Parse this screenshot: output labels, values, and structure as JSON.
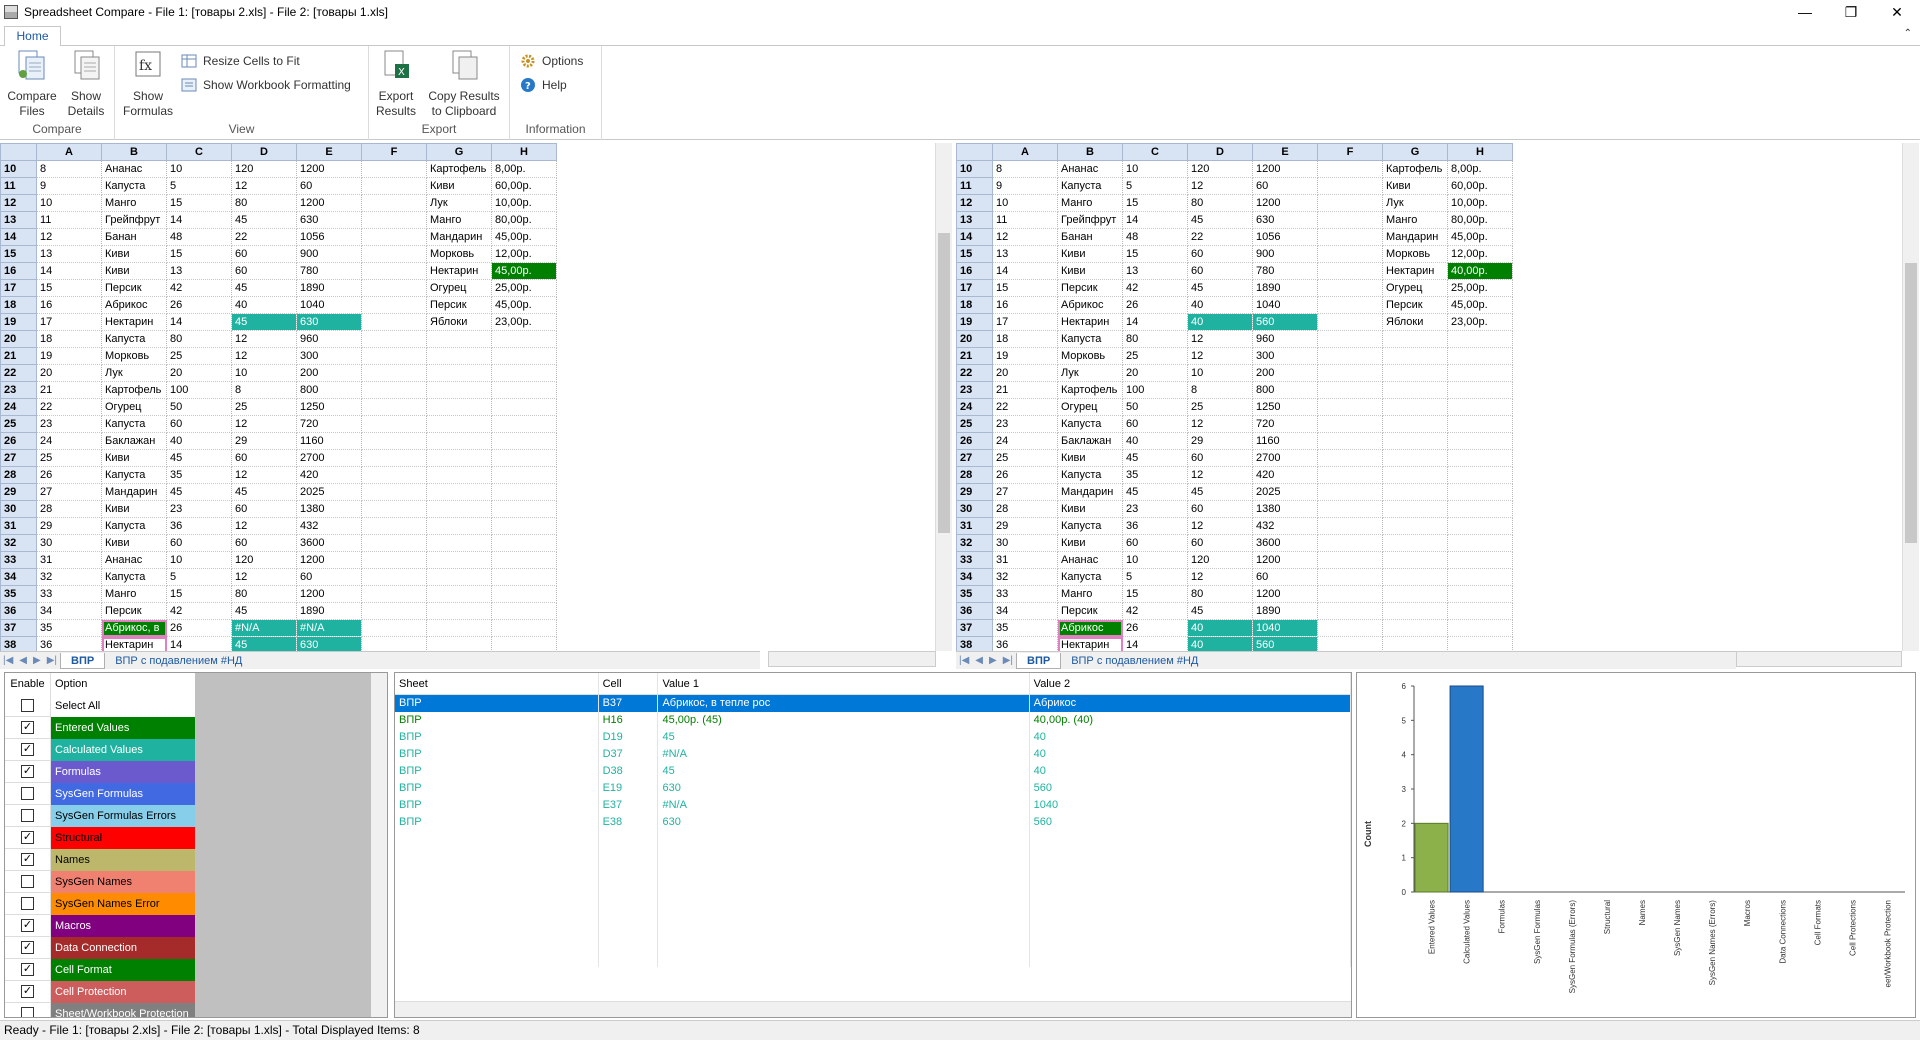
{
  "window": {
    "title": "Spreadsheet Compare - File 1: [товары 2.xls] - File 2: [товары 1.xls]"
  },
  "ribbon": {
    "tab": "Home",
    "groups": {
      "compare": "Compare",
      "view": "View",
      "export": "Export",
      "information": "Information"
    },
    "compare_files": [
      "Compare",
      "Files"
    ],
    "show_details": [
      "Show",
      "Details"
    ],
    "show_formulas": [
      "Show",
      "Formulas"
    ],
    "resize_cells": "Resize Cells to Fit",
    "show_formatting": "Show Workbook Formatting",
    "export_results": [
      "Export",
      "Results"
    ],
    "copy_results": [
      "Copy Results",
      "to Clipboard"
    ],
    "options": "Options",
    "help": "Help"
  },
  "columns": [
    "A",
    "B",
    "C",
    "D",
    "E",
    "F",
    "G",
    "H"
  ],
  "left_rows": [
    [
      "10",
      "8",
      "Ананас",
      "10",
      "120",
      "1200",
      "",
      "Картофель",
      "8,00р."
    ],
    [
      "11",
      "9",
      "Капуста",
      "5",
      "12",
      "60",
      "",
      "Киви",
      "60,00р."
    ],
    [
      "12",
      "10",
      "Манго",
      "15",
      "80",
      "1200",
      "",
      "Лук",
      "10,00р."
    ],
    [
      "13",
      "11",
      "Грейпфрут",
      "14",
      "45",
      "630",
      "",
      "Манго",
      "80,00р."
    ],
    [
      "14",
      "12",
      "Банан",
      "48",
      "22",
      "1056",
      "",
      "Мандарин",
      "45,00р."
    ],
    [
      "15",
      "13",
      "Киви",
      "15",
      "60",
      "900",
      "",
      "Морковь",
      "12,00р."
    ],
    [
      "16",
      "14",
      "Киви",
      "13",
      "60",
      "780",
      "",
      "Нектарин",
      "45,00р."
    ],
    [
      "17",
      "15",
      "Персик",
      "42",
      "45",
      "1890",
      "",
      "Огурец",
      "25,00р."
    ],
    [
      "18",
      "16",
      "Абрикос",
      "26",
      "40",
      "1040",
      "",
      "Персик",
      "45,00р."
    ],
    [
      "19",
      "17",
      "Нектарин",
      "14",
      "45",
      "630",
      "",
      "Яблоки",
      "23,00р."
    ],
    [
      "20",
      "18",
      "Капуста",
      "80",
      "12",
      "960",
      "",
      "",
      ""
    ],
    [
      "21",
      "19",
      "Морковь",
      "25",
      "12",
      "300",
      "",
      "",
      ""
    ],
    [
      "22",
      "20",
      "Лук",
      "20",
      "10",
      "200",
      "",
      "",
      ""
    ],
    [
      "23",
      "21",
      "Картофель",
      "100",
      "8",
      "800",
      "",
      "",
      ""
    ],
    [
      "24",
      "22",
      "Огурец",
      "50",
      "25",
      "1250",
      "",
      "",
      ""
    ],
    [
      "25",
      "23",
      "Капуста",
      "60",
      "12",
      "720",
      "",
      "",
      ""
    ],
    [
      "26",
      "24",
      "Баклажан",
      "40",
      "29",
      "1160",
      "",
      "",
      ""
    ],
    [
      "27",
      "25",
      "Киви",
      "45",
      "60",
      "2700",
      "",
      "",
      ""
    ],
    [
      "28",
      "26",
      "Капуста",
      "35",
      "12",
      "420",
      "",
      "",
      ""
    ],
    [
      "29",
      "27",
      "Мандарин",
      "45",
      "45",
      "2025",
      "",
      "",
      ""
    ],
    [
      "30",
      "28",
      "Киви",
      "23",
      "60",
      "1380",
      "",
      "",
      ""
    ],
    [
      "31",
      "29",
      "Капуста",
      "36",
      "12",
      "432",
      "",
      "",
      ""
    ],
    [
      "32",
      "30",
      "Киви",
      "60",
      "60",
      "3600",
      "",
      "",
      ""
    ],
    [
      "33",
      "31",
      "Ананас",
      "10",
      "120",
      "1200",
      "",
      "",
      ""
    ],
    [
      "34",
      "32",
      "Капуста",
      "5",
      "12",
      "60",
      "",
      "",
      ""
    ],
    [
      "35",
      "33",
      "Манго",
      "15",
      "80",
      "1200",
      "",
      "",
      ""
    ],
    [
      "36",
      "34",
      "Персик",
      "42",
      "45",
      "1890",
      "",
      "",
      ""
    ],
    [
      "37",
      "35",
      "Абрикос, в",
      "26",
      "#N/A",
      "#N/A",
      "",
      "",
      ""
    ],
    [
      "38",
      "36",
      "Нектарин",
      "14",
      "45",
      "630",
      "",
      "",
      ""
    ]
  ],
  "right_rows": [
    [
      "10",
      "8",
      "Ананас",
      "10",
      "120",
      "1200",
      "",
      "Картофель",
      "8,00р."
    ],
    [
      "11",
      "9",
      "Капуста",
      "5",
      "12",
      "60",
      "",
      "Киви",
      "60,00р."
    ],
    [
      "12",
      "10",
      "Манго",
      "15",
      "80",
      "1200",
      "",
      "Лук",
      "10,00р."
    ],
    [
      "13",
      "11",
      "Грейпфрут",
      "14",
      "45",
      "630",
      "",
      "Манго",
      "80,00р."
    ],
    [
      "14",
      "12",
      "Банан",
      "48",
      "22",
      "1056",
      "",
      "Мандарин",
      "45,00р."
    ],
    [
      "15",
      "13",
      "Киви",
      "15",
      "60",
      "900",
      "",
      "Морковь",
      "12,00р."
    ],
    [
      "16",
      "14",
      "Киви",
      "13",
      "60",
      "780",
      "",
      "Нектарин",
      "40,00р."
    ],
    [
      "17",
      "15",
      "Персик",
      "42",
      "45",
      "1890",
      "",
      "Огурец",
      "25,00р."
    ],
    [
      "18",
      "16",
      "Абрикос",
      "26",
      "40",
      "1040",
      "",
      "Персик",
      "45,00р."
    ],
    [
      "19",
      "17",
      "Нектарин",
      "14",
      "40",
      "560",
      "",
      "Яблоки",
      "23,00р."
    ],
    [
      "20",
      "18",
      "Капуста",
      "80",
      "12",
      "960",
      "",
      "",
      ""
    ],
    [
      "21",
      "19",
      "Морковь",
      "25",
      "12",
      "300",
      "",
      "",
      ""
    ],
    [
      "22",
      "20",
      "Лук",
      "20",
      "10",
      "200",
      "",
      "",
      ""
    ],
    [
      "23",
      "21",
      "Картофель",
      "100",
      "8",
      "800",
      "",
      "",
      ""
    ],
    [
      "24",
      "22",
      "Огурец",
      "50",
      "25",
      "1250",
      "",
      "",
      ""
    ],
    [
      "25",
      "23",
      "Капуста",
      "60",
      "12",
      "720",
      "",
      "",
      ""
    ],
    [
      "26",
      "24",
      "Баклажан",
      "40",
      "29",
      "1160",
      "",
      "",
      ""
    ],
    [
      "27",
      "25",
      "Киви",
      "45",
      "60",
      "2700",
      "",
      "",
      ""
    ],
    [
      "28",
      "26",
      "Капуста",
      "35",
      "12",
      "420",
      "",
      "",
      ""
    ],
    [
      "29",
      "27",
      "Мандарин",
      "45",
      "45",
      "2025",
      "",
      "",
      ""
    ],
    [
      "30",
      "28",
      "Киви",
      "23",
      "60",
      "1380",
      "",
      "",
      ""
    ],
    [
      "31",
      "29",
      "Капуста",
      "36",
      "12",
      "432",
      "",
      "",
      ""
    ],
    [
      "32",
      "30",
      "Киви",
      "60",
      "60",
      "3600",
      "",
      "",
      ""
    ],
    [
      "33",
      "31",
      "Ананас",
      "10",
      "120",
      "1200",
      "",
      "",
      ""
    ],
    [
      "34",
      "32",
      "Капуста",
      "5",
      "12",
      "60",
      "",
      "",
      ""
    ],
    [
      "35",
      "33",
      "Манго",
      "15",
      "80",
      "1200",
      "",
      "",
      ""
    ],
    [
      "36",
      "34",
      "Персик",
      "42",
      "45",
      "1890",
      "",
      "",
      ""
    ],
    [
      "37",
      "35",
      "Абрикос",
      "26",
      "40",
      "1040",
      "",
      "",
      ""
    ],
    [
      "38",
      "36",
      "Нектарин",
      "14",
      "40",
      "560",
      "",
      "",
      ""
    ]
  ],
  "left_highlights": {
    "16-8": "green",
    "19-4": "teal",
    "19-5": "teal",
    "37-2": "pinkgreen",
    "37-4": "teal",
    "37-5": "teal",
    "38-2": "pink",
    "38-4": "teal",
    "38-5": "teal"
  },
  "right_highlights": {
    "16-8": "green",
    "19-4": "teal",
    "19-5": "teal",
    "37-2": "pinkgreen",
    "37-4": "teal",
    "37-5": "teal",
    "38-2": "pink",
    "38-4": "teal",
    "38-5": "teal"
  },
  "sheet_tabs": [
    "ВПР",
    "ВПР с подавлением #НД"
  ],
  "options": {
    "header": {
      "enable": "Enable",
      "option": "Option"
    },
    "items": [
      {
        "label": "Select All",
        "checked": false,
        "color": "#ffffff",
        "text": "#000000"
      },
      {
        "label": "Entered Values",
        "checked": true,
        "color": "#008000",
        "text": "#ffffff"
      },
      {
        "label": "Calculated Values",
        "checked": true,
        "color": "#20b2a0",
        "text": "#ffffff"
      },
      {
        "label": "Formulas",
        "checked": true,
        "color": "#6a5acd",
        "text": "#ffffff"
      },
      {
        "label": "SysGen Formulas",
        "checked": false,
        "color": "#4169e1",
        "text": "#ffffff"
      },
      {
        "label": "SysGen Formulas Errors",
        "checked": false,
        "color": "#87ceeb",
        "text": "#000000"
      },
      {
        "label": "Structural",
        "checked": true,
        "color": "#ff0000",
        "text": "#000000"
      },
      {
        "label": "Names",
        "checked": true,
        "color": "#bdb76b",
        "text": "#000000"
      },
      {
        "label": "SysGen Names",
        "checked": false,
        "color": "#f08070",
        "text": "#000000"
      },
      {
        "label": "SysGen Names Error",
        "checked": false,
        "color": "#ff8c00",
        "text": "#000000"
      },
      {
        "label": "Macros",
        "checked": true,
        "color": "#800080",
        "text": "#ffffff"
      },
      {
        "label": "Data Connection",
        "checked": true,
        "color": "#a52a2a",
        "text": "#ffffff"
      },
      {
        "label": "Cell Format",
        "checked": true,
        "color": "#008000",
        "text": "#ffffff"
      },
      {
        "label": "Cell Protection",
        "checked": true,
        "color": "#cd5c5c",
        "text": "#ffffff"
      },
      {
        "label": "Sheet/Workbook Protection",
        "checked": false,
        "color": "#808080",
        "text": "#ffffff"
      }
    ]
  },
  "results": {
    "headers": [
      "Sheet",
      "Cell",
      "Value 1",
      "Value 2"
    ],
    "rows": [
      {
        "sheet": "ВПР",
        "cell": "B37",
        "v1": "Абрикос, в тепле рос",
        "v2": "Абрикос",
        "kind": "sel"
      },
      {
        "sheet": "ВПР",
        "cell": "H16",
        "v1": "45,00р. (45)",
        "v2": "40,00р. (40)",
        "kind": "ent"
      },
      {
        "sheet": "ВПР",
        "cell": "D19",
        "v1": "45",
        "v2": "40",
        "kind": "calc"
      },
      {
        "sheet": "ВПР",
        "cell": "D37",
        "v1": "#N/A",
        "v2": "40",
        "kind": "calc"
      },
      {
        "sheet": "ВПР",
        "cell": "D38",
        "v1": "45",
        "v2": "40",
        "kind": "calc"
      },
      {
        "sheet": "ВПР",
        "cell": "E19",
        "v1": "630",
        "v2": "560",
        "kind": "calc"
      },
      {
        "sheet": "ВПР",
        "cell": "E37",
        "v1": "#N/A",
        "v2": "1040",
        "kind": "calc"
      },
      {
        "sheet": "ВПР",
        "cell": "E38",
        "v1": "630",
        "v2": "560",
        "kind": "calc"
      }
    ]
  },
  "chart_data": {
    "type": "bar",
    "categories": [
      "Entered Values",
      "Calculated Values",
      "Formulas",
      "SysGen Formulas",
      "SysGen Formulas (Errors)",
      "Structural",
      "Names",
      "SysGen Names",
      "SysGen Names (Errors)",
      "Macros",
      "Data Connections",
      "Cell Formats",
      "Cell Protections",
      "Sheet/Workbook Protection"
    ],
    "visible_last_label": "eet/Workbook Protection",
    "values": [
      2,
      6,
      0,
      0,
      0,
      0,
      0,
      0,
      0,
      0,
      0,
      0,
      0,
      0
    ],
    "colors": [
      "#8cb04a",
      "#2878c8"
    ],
    "ylabel": "Count",
    "ylim": [
      0,
      6
    ],
    "yticks": [
      "0",
      "1",
      "2",
      "3",
      "4",
      "5",
      "6"
    ]
  },
  "status": "Ready - File 1: [товары 2.xls] - File 2: [товары 1.xls] - Total Displayed Items: 8"
}
